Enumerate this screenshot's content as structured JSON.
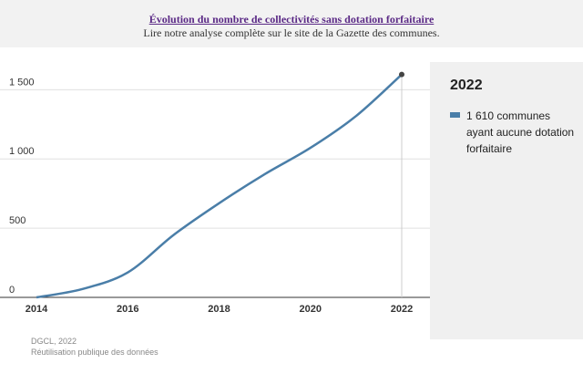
{
  "header": {
    "title": "Évolution du nombre de collectivités sans dotation forfaitaire",
    "subtitle": "Lire notre analyse complète sur le site de la Gazette des communes."
  },
  "legend_panel": {
    "year": "2022",
    "label": "1 610 communes ayant aucune dotation forfaitaire"
  },
  "footer": {
    "source": "DGCL, 2022",
    "note": "Réutilisation publique des données"
  },
  "colors": {
    "series": "#4a7ea8",
    "marker": "#444444",
    "grid": "#e0e0e0",
    "highlight_line": "#cccccc"
  },
  "chart_data": {
    "type": "line",
    "title": "Évolution du nombre de collectivités sans dotation forfaitaire",
    "xlabel": "",
    "ylabel": "",
    "x": [
      2014,
      2015,
      2016,
      2017,
      2018,
      2019,
      2020,
      2021,
      2022
    ],
    "series": [
      {
        "name": "communes ayant aucune dotation forfaitaire",
        "values": [
          0,
          60,
          180,
          450,
          680,
          890,
          1080,
          1310,
          1610
        ]
      }
    ],
    "xlim": [
      2014,
      2022
    ],
    "ylim": [
      0,
      1700
    ],
    "x_ticks": [
      {
        "value": 2014,
        "label": "2014"
      },
      {
        "value": 2016,
        "label": "2016"
      },
      {
        "value": 2018,
        "label": "2018"
      },
      {
        "value": 2020,
        "label": "2020"
      },
      {
        "value": 2022,
        "label": "2022"
      }
    ],
    "y_ticks": [
      {
        "value": 0,
        "label": "0"
      },
      {
        "value": 500,
        "label": "500"
      },
      {
        "value": 1000,
        "label": "1 000"
      },
      {
        "value": 1500,
        "label": "1 500"
      }
    ],
    "highlight": {
      "x": 2022,
      "y": 1610
    },
    "grid": true
  }
}
